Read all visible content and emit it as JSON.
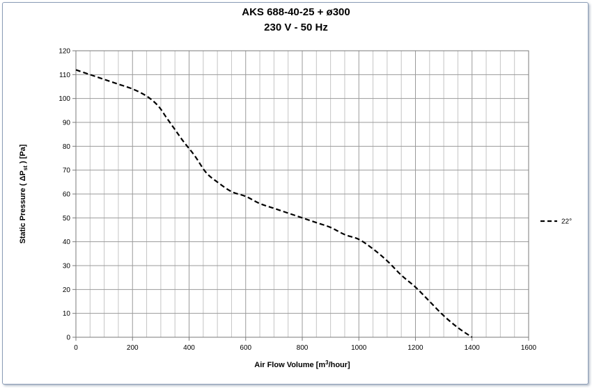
{
  "chart_data": {
    "type": "line",
    "title": "AKS 688-40-25 +  ø300",
    "subtitle": "230 V - 50 Hz",
    "xlabel": "Air Flow Volume [m³/hour]",
    "xlabel_parts": {
      "text": "Air Flow Volume [m",
      "sup": "3",
      "rest": "/hour]"
    },
    "ylabel": "Static Pressure  ( ΔPst ) [Pa]",
    "ylabel_parts": {
      "text": "Static Pressure  ( ΔP",
      "sub": "st",
      "rest": " ) [Pa]"
    },
    "xlim": [
      0,
      1600
    ],
    "ylim": [
      0,
      120
    ],
    "x_ticks": [
      0,
      200,
      400,
      600,
      800,
      1000,
      1200,
      1400,
      1600
    ],
    "y_ticks": [
      0,
      10,
      20,
      30,
      40,
      50,
      60,
      70,
      80,
      90,
      100,
      110,
      120
    ],
    "x_minor_step": 50,
    "grid": true,
    "legend_position": "right",
    "series": [
      {
        "name": "22°",
        "style": "dashed",
        "color": "#000000",
        "x": [
          0,
          50,
          100,
          150,
          200,
          250,
          290,
          320,
          350,
          380,
          420,
          460,
          500,
          550,
          600,
          650,
          700,
          750,
          800,
          850,
          900,
          950,
          1000,
          1050,
          1100,
          1150,
          1200,
          1250,
          1300,
          1350,
          1400
        ],
        "y": [
          112,
          110,
          108,
          106,
          104,
          101,
          97,
          92,
          87,
          82,
          76,
          69,
          65,
          61,
          59,
          56,
          54,
          52,
          50,
          48,
          46,
          43,
          41,
          37,
          32,
          26,
          21,
          15,
          9,
          4,
          0
        ]
      }
    ]
  }
}
